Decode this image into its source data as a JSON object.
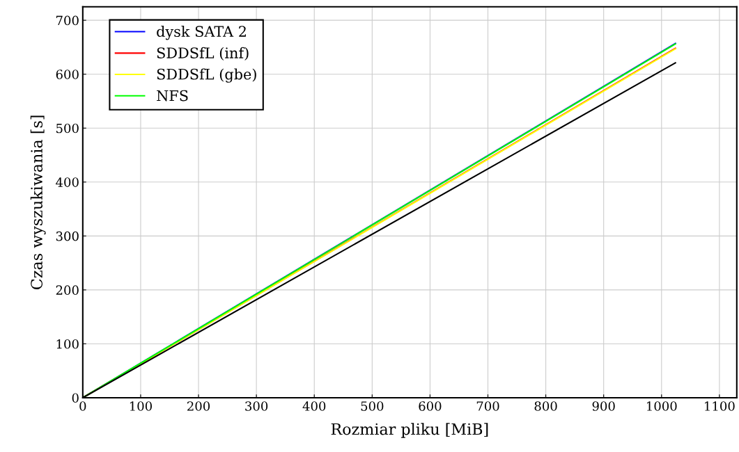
{
  "chart_data": {
    "type": "line",
    "xlabel": "Rozmiar pliku [MiB]",
    "ylabel": "Czas wyszukiwania [s]",
    "x": [
      0,
      1024
    ],
    "series": [
      {
        "name": "dysk SATA 2",
        "color": "#0000ff",
        "values": [
          0,
          657
        ]
      },
      {
        "name": "SDDSfL (inf)",
        "color": "#ff0000",
        "values": [
          0,
          648
        ]
      },
      {
        "name": "SDDSfL (gbe)",
        "color": "#ffff00",
        "values": [
          0,
          647
        ]
      },
      {
        "name": "NFS",
        "color": "#00ff00",
        "values": [
          0,
          656
        ]
      },
      {
        "color": "#000000",
        "values": [
          0,
          621
        ]
      }
    ],
    "xlim": [
      0,
      1130
    ],
    "ylim": [
      0,
      725
    ],
    "xticks": [
      0,
      100,
      200,
      300,
      400,
      500,
      600,
      700,
      800,
      900,
      1000,
      1100
    ],
    "yticks": [
      0,
      100,
      200,
      300,
      400,
      500,
      600,
      700
    ],
    "grid": true,
    "legend": "top left",
    "marker": "none",
    "line_style": "solid"
  }
}
